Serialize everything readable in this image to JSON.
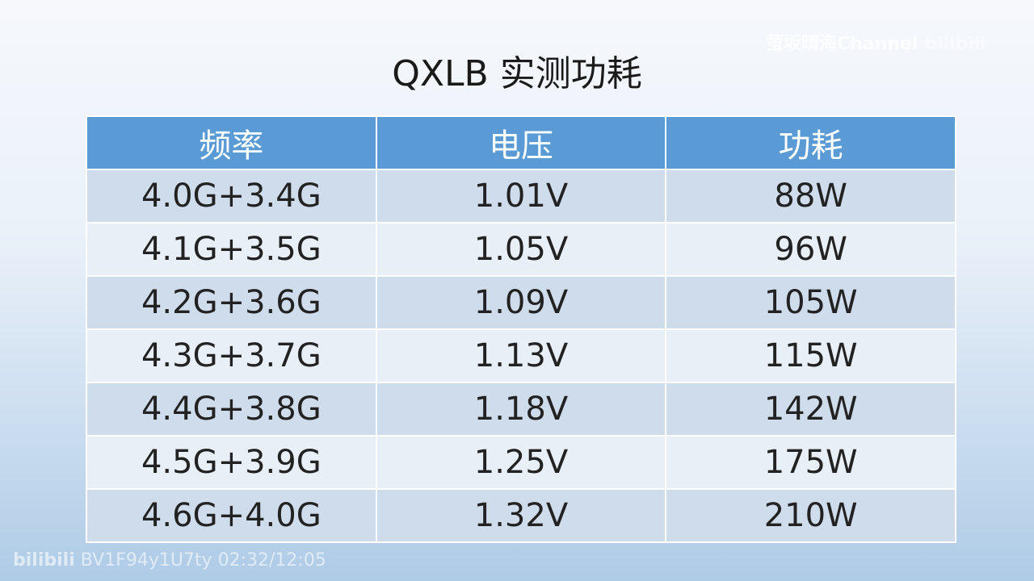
{
  "title": "QXLB 实测功耗",
  "table": {
    "headers": [
      "频率",
      "电压",
      "功耗"
    ],
    "rows": [
      [
        "4.0G+3.4G",
        "1.01V",
        "88W"
      ],
      [
        "4.1G+3.5G",
        "1.05V",
        "96W"
      ],
      [
        "4.2G+3.6G",
        "1.09V",
        "105W"
      ],
      [
        "4.3G+3.7G",
        "1.13V",
        "115W"
      ],
      [
        "4.4G+3.8G",
        "1.18V",
        "142W"
      ],
      [
        "4.5G+3.9G",
        "1.25V",
        "175W"
      ],
      [
        "4.6G+4.0G",
        "1.32V",
        "210W"
      ]
    ]
  },
  "watermark": {
    "channel": "萤坂晴海Channel",
    "logo": "bilibili",
    "video_info": "BV1F94y1U7ty 02:32/12:05"
  },
  "colors": {
    "header": "#5b9bd5",
    "row_odd": "#cfdcec",
    "row_even": "#e9eff7"
  }
}
